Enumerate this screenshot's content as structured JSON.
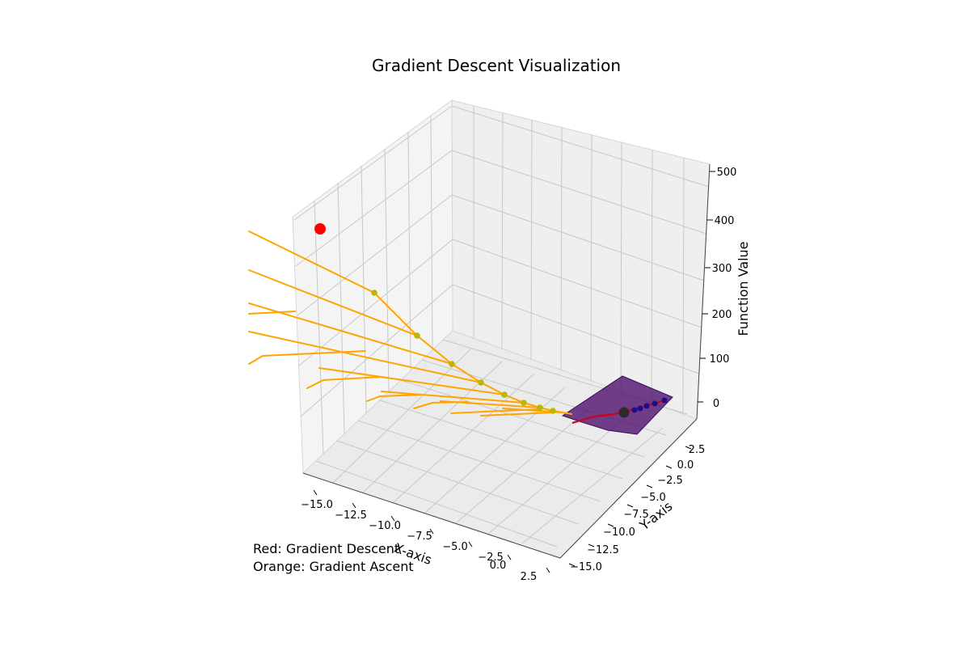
{
  "chart_data": {
    "type": "3d-surface-with-paths",
    "title": "Gradient Descent Visualization",
    "xlabel": "X-axis",
    "ylabel": "Y-axis",
    "zlabel": "Function Value",
    "x_ticks": [
      "−15.0",
      "−12.5",
      "−10.0",
      "−7.5",
      "−5.0",
      "−2.5",
      "0.0",
      "2.5"
    ],
    "y_ticks": [
      "−15.0",
      "−12.5",
      "−10.0",
      "−7.5",
      "−5.0",
      "−2.5",
      "0.0",
      "2.5"
    ],
    "z_ticks": [
      "0",
      "100",
      "200",
      "300",
      "400",
      "500"
    ],
    "surface_color": "#4b0c6b",
    "descent_color": "#d0021b",
    "ascent_color": "#ffa500",
    "ascent_point_color": "#b8b800",
    "start_marker_color": "#ff0000",
    "end_marker_color": "#2b2b2b",
    "descent_points_color": "#1a0f8a",
    "annotations": [
      "Red: Gradient Descent",
      "Orange: Gradient Ascent"
    ]
  }
}
